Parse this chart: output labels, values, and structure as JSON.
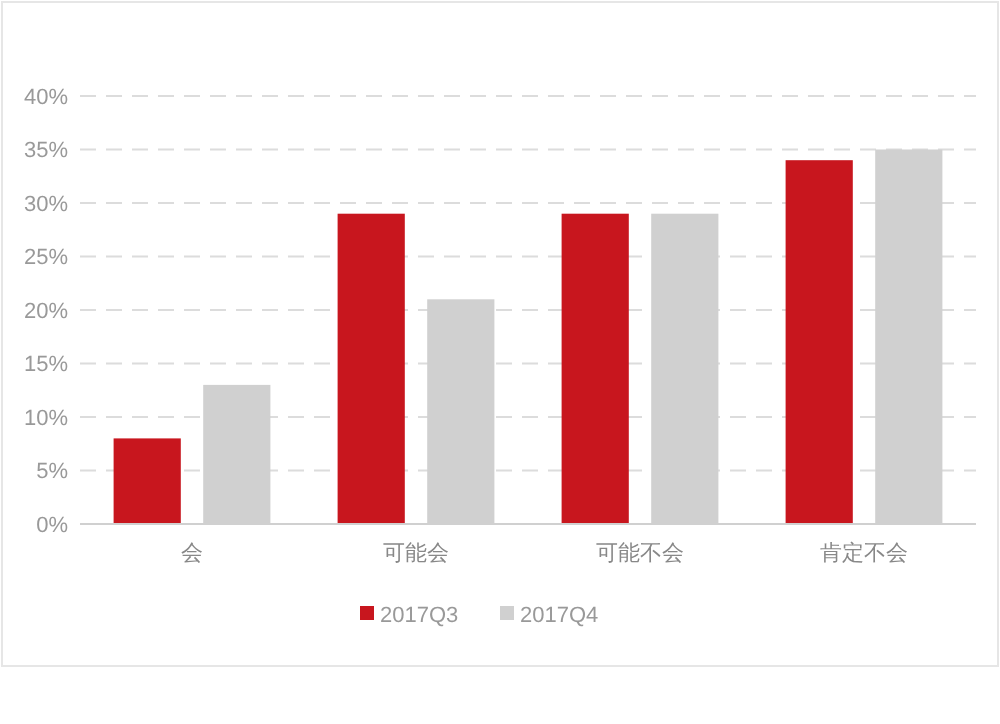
{
  "chart_data": {
    "type": "bar",
    "categories": [
      "会",
      "可能会",
      "可能不会",
      "肯定不会"
    ],
    "series": [
      {
        "name": "2017Q3",
        "color": "#c8161e",
        "values": [
          8,
          29,
          29,
          34
        ]
      },
      {
        "name": "2017Q4",
        "color": "#d0d0d0",
        "values": [
          13,
          21,
          29,
          35
        ]
      }
    ],
    "ylim": [
      0,
      40
    ],
    "yticks": [
      {
        "value": 0,
        "label": "0%"
      },
      {
        "value": 5,
        "label": "5%"
      },
      {
        "value": 10,
        "label": "10%"
      },
      {
        "value": 15,
        "label": "15%"
      },
      {
        "value": 20,
        "label": "20%"
      },
      {
        "value": 25,
        "label": "25%"
      },
      {
        "value": 30,
        "label": "30%"
      },
      {
        "value": 35,
        "label": "35%"
      },
      {
        "value": 40,
        "label": "40%"
      }
    ],
    "grid": "y",
    "legend": "bottom"
  }
}
